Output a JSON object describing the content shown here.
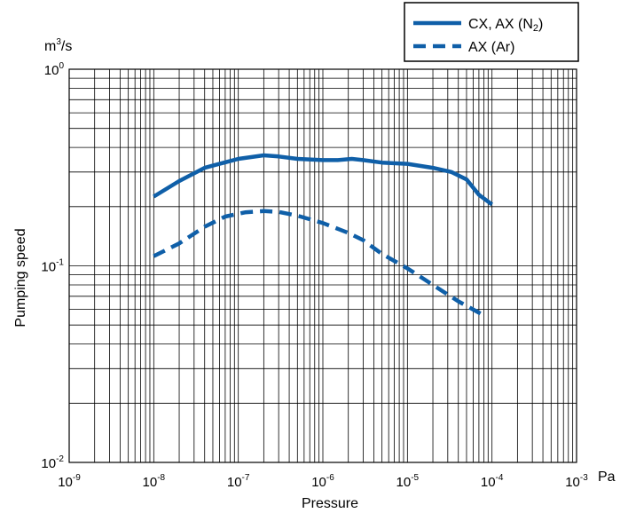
{
  "chart_data": {
    "type": "line",
    "title": "",
    "xlabel": "Pressure",
    "x_unit": "Pa",
    "ylabel": "Pumping speed",
    "y_unit": "m³/s",
    "x_scale": "log",
    "y_scale": "log",
    "xlim": [
      1e-09,
      0.001
    ],
    "ylim": [
      0.01,
      1
    ],
    "grid": true,
    "legend_position": "top-right",
    "x_tick_bases": [
      "10",
      "10",
      "10",
      "10",
      "10",
      "10",
      "10"
    ],
    "x_tick_exponents": [
      "-9",
      "-8",
      "-7",
      "-6",
      "-5",
      "-4",
      "-3"
    ],
    "y_tick_bases": [
      "10",
      "10",
      "10"
    ],
    "y_tick_exponents": [
      "0",
      "-1",
      "-2"
    ],
    "series": [
      {
        "name": "CX, AX (N₂)",
        "label_main": "CX, AX (N",
        "label_sub": "2",
        "label_end": ")",
        "color": "#0f5fa8",
        "style": "solid",
        "x": [
          1e-08,
          2e-08,
          4e-08,
          6e-08,
          1e-07,
          2e-07,
          3e-07,
          5e-07,
          1e-06,
          1.5e-06,
          2.2e-06,
          3e-06,
          5e-06,
          1e-05,
          2e-05,
          3.3e-05,
          5e-05,
          7e-05,
          0.0001
        ],
        "y": [
          0.225,
          0.27,
          0.315,
          0.33,
          0.35,
          0.365,
          0.36,
          0.35,
          0.345,
          0.345,
          0.35,
          0.345,
          0.335,
          0.33,
          0.315,
          0.3,
          0.275,
          0.23,
          0.205
        ]
      },
      {
        "name": "AX (Ar)",
        "label_main": "AX (Ar)",
        "label_sub": "",
        "label_end": "",
        "color": "#0f5fa8",
        "style": "dashed",
        "x": [
          1e-08,
          2e-08,
          4e-08,
          7e-08,
          1.2e-07,
          2e-07,
          3e-07,
          5e-07,
          1e-06,
          2e-06,
          3e-06,
          5e-06,
          1e-05,
          2e-05,
          4e-05,
          8e-05
        ],
        "y": [
          0.112,
          0.13,
          0.158,
          0.178,
          0.187,
          0.19,
          0.188,
          0.18,
          0.165,
          0.147,
          0.135,
          0.115,
          0.097,
          0.08,
          0.066,
          0.056
        ]
      }
    ]
  }
}
